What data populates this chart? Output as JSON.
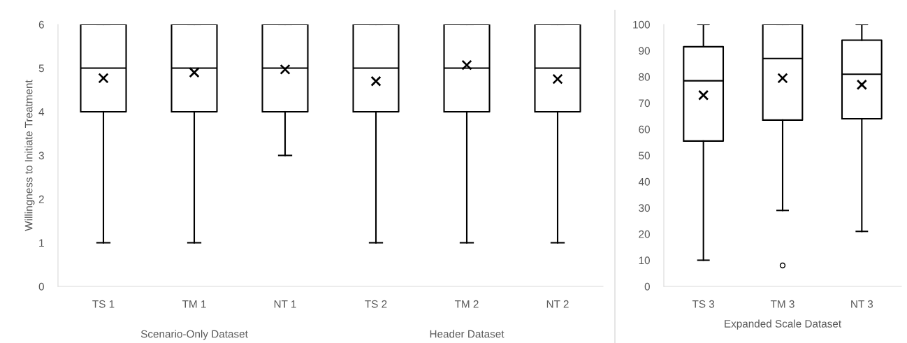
{
  "chart_data": [
    {
      "type": "box",
      "ylabel": "Willingness to Initiate Treatment",
      "categories": [
        "TS 1",
        "TM 1",
        "NT 1",
        "TS 2",
        "TM 2",
        "NT 2"
      ],
      "ylim": [
        0,
        6
      ],
      "yticks": [
        0,
        1,
        2,
        3,
        4,
        5,
        6
      ],
      "grid": false,
      "color": "#000000",
      "annotations": [
        "Scenario-Only Dataset",
        "Header Dataset"
      ],
      "boxes": [
        {
          "low": 1,
          "q1": 4,
          "median": 5,
          "q3": 6,
          "high": 6,
          "mean": 4.77
        },
        {
          "low": 1,
          "q1": 4,
          "median": 5,
          "q3": 6,
          "high": 6,
          "mean": 4.9
        },
        {
          "low": 3,
          "q1": 4,
          "median": 5,
          "q3": 6,
          "high": 6,
          "mean": 4.97
        },
        {
          "low": 1,
          "q1": 4,
          "median": 5,
          "q3": 6,
          "high": 6,
          "mean": 4.7
        },
        {
          "low": 1,
          "q1": 4,
          "median": 5,
          "q3": 6,
          "high": 6,
          "mean": 5.07
        },
        {
          "low": 1,
          "q1": 4,
          "median": 5,
          "q3": 6,
          "high": 6,
          "mean": 4.75
        }
      ]
    },
    {
      "type": "box",
      "xlabel": "Expanded Scale Dataset",
      "categories": [
        "TS 3",
        "TM 3",
        "NT 3"
      ],
      "ylim": [
        0,
        100
      ],
      "yticks": [
        0,
        10,
        20,
        30,
        40,
        50,
        60,
        70,
        80,
        90,
        100
      ],
      "grid": false,
      "color": "#000000",
      "boxes": [
        {
          "low": 10,
          "q1": 55.5,
          "median": 78.5,
          "q3": 91.5,
          "high": 100,
          "mean": 73
        },
        {
          "low": 29,
          "q1": 63.5,
          "median": 87,
          "q3": 100,
          "high": 100,
          "mean": 79.5,
          "outliers": [
            8
          ]
        },
        {
          "low": 21,
          "q1": 64,
          "median": 81,
          "q3": 94,
          "high": 100,
          "mean": 77
        }
      ]
    }
  ]
}
